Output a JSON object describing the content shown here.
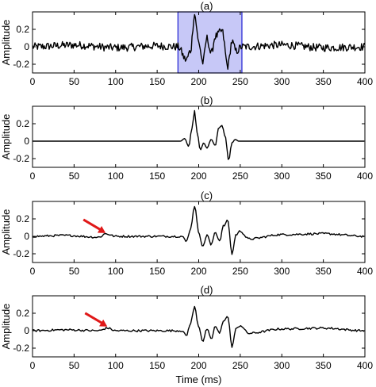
{
  "chart_data": [
    {
      "type": "line",
      "panel_label": "(a)",
      "xlabel": "",
      "ylabel": "Amplitude",
      "xlim": [
        0,
        400
      ],
      "ylim": [
        -0.3,
        0.4
      ],
      "xticks": [
        0,
        50,
        100,
        150,
        200,
        250,
        300,
        350,
        400
      ],
      "yticks": [
        -0.2,
        0,
        0.2
      ],
      "ytick_labels": [
        "-0.2",
        "0",
        "0.2"
      ],
      "highlight_window": {
        "x_start": 175,
        "x_end": 252,
        "color": "#c7c8f7"
      },
      "signal": "noisy trace, noise amplitude about ±0.07 outside window; event peaks near 195 (0.37) and 228 (0.18)",
      "series": [
        {
          "x": [
            0,
            50,
            100,
            150,
            175,
            185,
            190,
            195,
            200,
            205,
            210,
            215,
            220,
            228,
            235,
            240,
            245,
            252,
            300,
            350,
            400
          ],
          "y": [
            0.0,
            0.02,
            -0.01,
            0.01,
            0.0,
            -0.15,
            -0.05,
            0.37,
            0.05,
            -0.18,
            0.1,
            -0.08,
            0.12,
            0.18,
            -0.22,
            0.06,
            -0.05,
            0.0,
            0.02,
            -0.01,
            0.0
          ]
        }
      ]
    },
    {
      "type": "line",
      "panel_label": "(b)",
      "xlabel": "",
      "ylabel": "Amplitude",
      "xlim": [
        0,
        400
      ],
      "ylim": [
        -0.3,
        0.4
      ],
      "xticks": [
        0,
        50,
        100,
        150,
        200,
        250,
        300,
        350,
        400
      ],
      "yticks": [
        -0.2,
        0,
        0.2
      ],
      "ytick_labels": [
        "-0.2",
        "0",
        "0.2"
      ],
      "series": [
        {
          "x": [
            0,
            170,
            178,
            183,
            188,
            192,
            195,
            198,
            202,
            206,
            210,
            215,
            220,
            224,
            228,
            232,
            236,
            240,
            244,
            248,
            252,
            400
          ],
          "y": [
            0.0,
            0.0,
            0.0,
            0.03,
            -0.06,
            0.15,
            0.35,
            0.1,
            -0.1,
            -0.02,
            -0.08,
            0.02,
            -0.05,
            0.15,
            0.18,
            0.05,
            -0.22,
            -0.02,
            0.02,
            0.0,
            0.0,
            0.0
          ]
        }
      ]
    },
    {
      "type": "line",
      "panel_label": "(c)",
      "xlabel": "",
      "ylabel": "Amplitude",
      "xlim": [
        0,
        400
      ],
      "ylim": [
        -0.3,
        0.4
      ],
      "xticks": [
        0,
        50,
        100,
        150,
        200,
        250,
        300,
        350,
        400
      ],
      "yticks": [
        -0.2,
        0,
        0.2
      ],
      "ytick_labels": [
        "-0.2",
        "0",
        "0.2"
      ],
      "annotation": {
        "type": "arrow",
        "color": "#e01818",
        "points_to_x": 88,
        "points_to_y": 0.01
      },
      "series": [
        {
          "x": [
            0,
            40,
            80,
            88,
            100,
            150,
            180,
            185,
            190,
            195,
            200,
            205,
            210,
            215,
            220,
            225,
            230,
            235,
            240,
            245,
            250,
            260,
            300,
            350,
            400
          ],
          "y": [
            0.0,
            0.01,
            -0.01,
            0.03,
            0.0,
            0.0,
            0.0,
            -0.06,
            0.08,
            0.35,
            0.05,
            -0.12,
            0.02,
            -0.1,
            0.05,
            -0.05,
            0.12,
            0.18,
            -0.2,
            0.02,
            0.06,
            -0.03,
            0.02,
            0.03,
            0.0
          ]
        }
      ]
    },
    {
      "type": "line",
      "panel_label": "(d)",
      "xlabel": "Time (ms)",
      "ylabel": "Amplitude",
      "xlim": [
        0,
        400
      ],
      "ylim": [
        -0.3,
        0.4
      ],
      "xticks": [
        0,
        50,
        100,
        150,
        200,
        250,
        300,
        350,
        400
      ],
      "yticks": [
        -0.2,
        0,
        0.2
      ],
      "ytick_labels": [
        "-0.2",
        "0",
        "0.2"
      ],
      "annotation": {
        "type": "arrow",
        "color": "#e01818",
        "points_to_x": 90,
        "points_to_y": 0.02
      },
      "series": [
        {
          "x": [
            0,
            40,
            80,
            90,
            100,
            150,
            180,
            185,
            190,
            195,
            200,
            205,
            210,
            215,
            220,
            225,
            230,
            235,
            240,
            245,
            250,
            260,
            300,
            350,
            400
          ],
          "y": [
            0.0,
            0.01,
            0.0,
            0.03,
            0.0,
            0.0,
            0.0,
            -0.06,
            0.08,
            0.27,
            0.05,
            -0.12,
            0.02,
            -0.1,
            0.05,
            -0.03,
            0.12,
            0.16,
            -0.18,
            0.02,
            0.06,
            -0.03,
            0.02,
            0.03,
            0.0
          ]
        }
      ]
    }
  ]
}
